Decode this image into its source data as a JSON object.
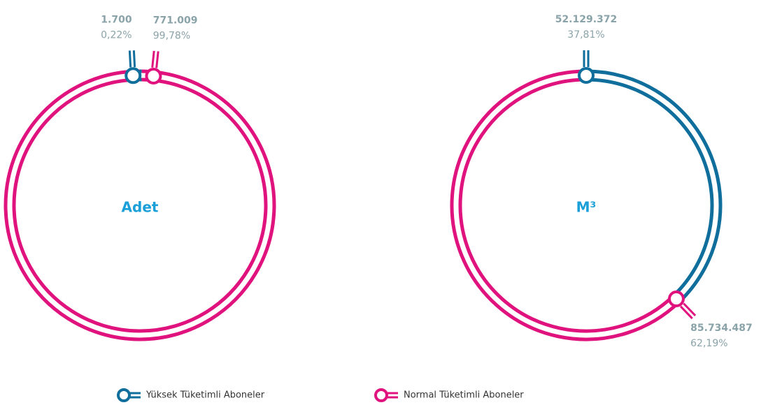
{
  "chart_data": [
    {
      "type": "donut",
      "title": "Adet",
      "categories": [
        "Yüksek Tüketimli Aboneler",
        "Normal Tüketimli Aboneler"
      ],
      "values": [
        0.22,
        99.78
      ],
      "value_labels": [
        "0,22%",
        "99,78%"
      ],
      "counts": [
        1700,
        771009
      ],
      "count_labels": [
        "1.700",
        "771.009"
      ],
      "colors": [
        "#0f6e9c",
        "#e0137e"
      ]
    },
    {
      "type": "donut",
      "title": "M³",
      "categories": [
        "Yüksek Tüketimli Aboneler",
        "Normal Tüketimli Aboneler"
      ],
      "values": [
        37.81,
        62.19
      ],
      "value_labels": [
        "37,81%",
        "62,19%"
      ],
      "counts": [
        52129372,
        85734487
      ],
      "count_labels": [
        "52.129.372",
        "85.734.487"
      ],
      "colors": [
        "#0f6e9c",
        "#e0137e"
      ]
    }
  ],
  "legend": [
    {
      "name": "Yüksek Tüketimli Aboneler",
      "color": "#0f6e9c"
    },
    {
      "name": "Normal Tüketimli Aboneler",
      "color": "#e0137e"
    }
  ]
}
